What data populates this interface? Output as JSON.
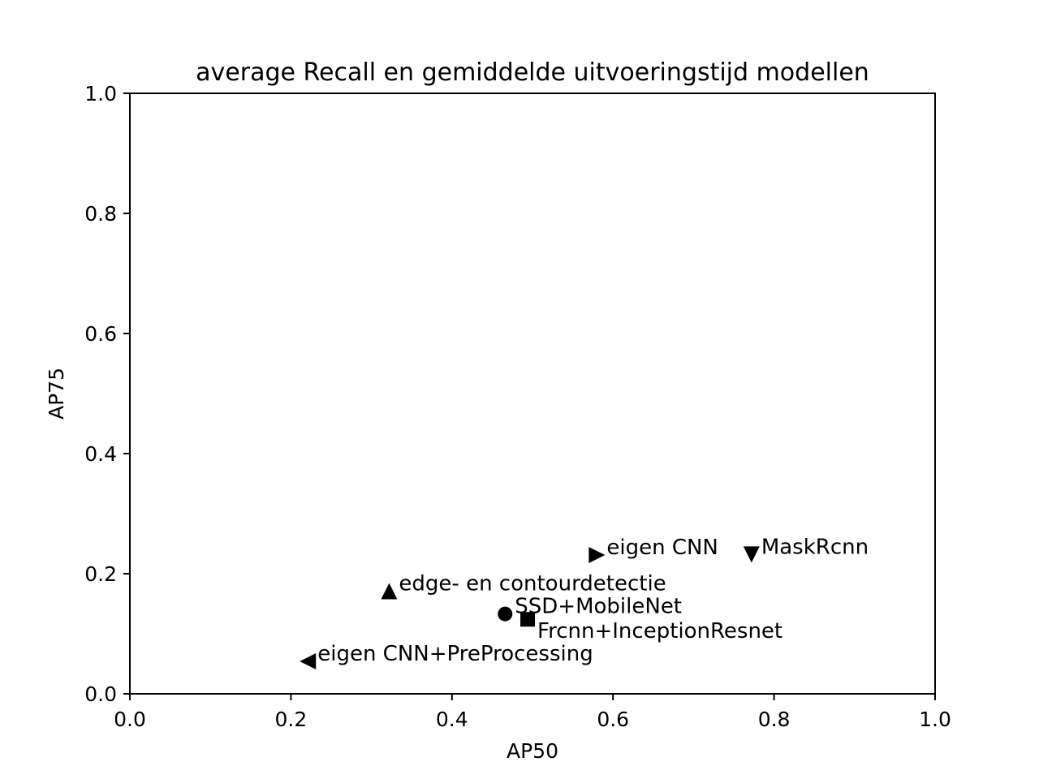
{
  "chart_data": {
    "type": "scatter",
    "title": "average Recall en gemiddelde uitvoeringstijd modellen",
    "xlabel": "AP50",
    "ylabel": "AP75",
    "xlim": [
      0.0,
      1.0
    ],
    "ylim": [
      0.0,
      1.0
    ],
    "xticks": [
      "0.0",
      "0.2",
      "0.4",
      "0.6",
      "0.8",
      "1.0"
    ],
    "yticks": [
      "0.0",
      "0.2",
      "0.4",
      "0.6",
      "0.8",
      "1.0"
    ],
    "grid": false,
    "marker_color": "#000000",
    "points": [
      {
        "label": "SSD+MobileNet",
        "x": 0.466,
        "y": 0.133,
        "marker": "circle",
        "label_pos": "above-right"
      },
      {
        "label": "Frcnn+InceptionResnet",
        "x": 0.494,
        "y": 0.124,
        "marker": "square",
        "label_pos": "below-right"
      },
      {
        "label": "edge- en contourdetectie",
        "x": 0.322,
        "y": 0.171,
        "marker": "triangle-up",
        "label_pos": "right"
      },
      {
        "label": "eigen CNN",
        "x": 0.58,
        "y": 0.231,
        "marker": "triangle-right",
        "label_pos": "right"
      },
      {
        "label": "MaskRcnn",
        "x": 0.772,
        "y": 0.232,
        "marker": "triangle-down",
        "label_pos": "right"
      },
      {
        "label": "eigen CNN+PreProcessing",
        "x": 0.221,
        "y": 0.054,
        "marker": "triangle-left",
        "label_pos": "right"
      }
    ]
  }
}
